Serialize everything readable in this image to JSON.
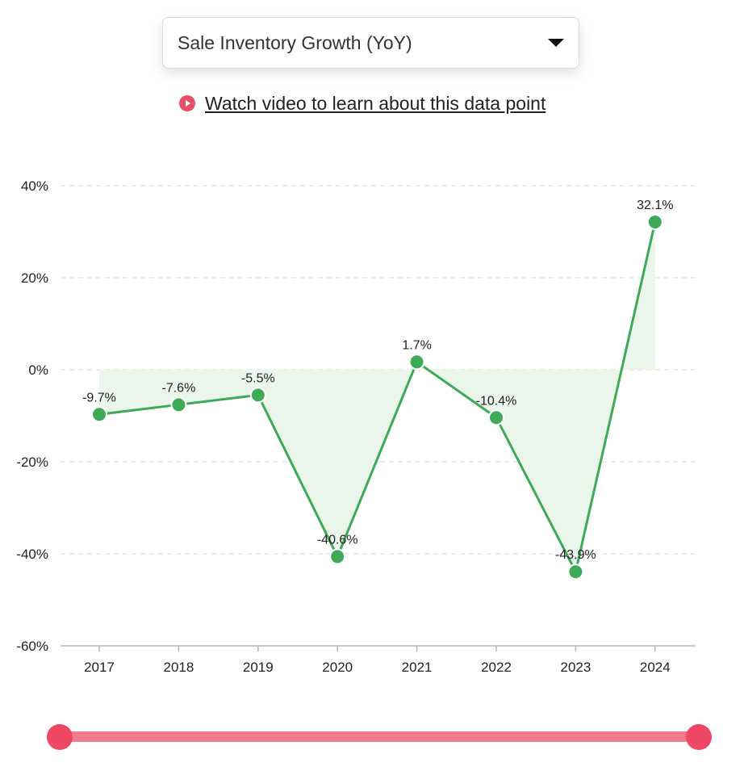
{
  "selector": {
    "label": "Sale Inventory Growth (YoY)",
    "caret_icon": "caret-down-icon"
  },
  "video_link": {
    "text": "Watch video to learn about this data point",
    "icon": "play-circle-icon",
    "icon_color": "#e8506a"
  },
  "chart_data": {
    "type": "area",
    "categories": [
      "2017",
      "2018",
      "2019",
      "2020",
      "2021",
      "2022",
      "2023",
      "2024"
    ],
    "values": [
      -9.7,
      -7.6,
      -5.5,
      -40.6,
      1.7,
      -10.4,
      -43.9,
      32.1
    ],
    "value_labels": [
      "-9.7%",
      "-7.6%",
      "-5.5%",
      "-40.6%",
      "1.7%",
      "-10.4%",
      "-43.9%",
      "32.1%"
    ],
    "ylim": [
      -60,
      40
    ],
    "yticks": [
      40,
      20,
      0,
      -20,
      -40,
      -60
    ],
    "ytick_labels": [
      "40%",
      "20%",
      "0%",
      "-20%",
      "-40%",
      "-60%"
    ],
    "grid": true,
    "line_color": "#3daa57",
    "fill_color": "#eaf6ec"
  },
  "range_slider": {
    "track_color": "#f37a8e",
    "handle_color": "#ef4865"
  }
}
